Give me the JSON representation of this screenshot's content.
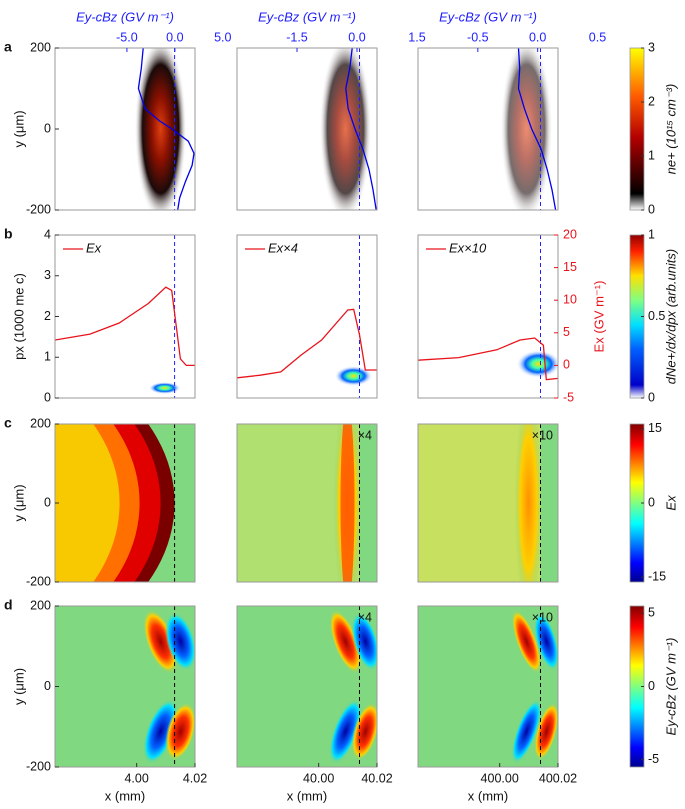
{
  "chart_data": [
    {
      "type": "density",
      "panel_label": "a",
      "ylabel": "y (μm)",
      "ylim": [
        -200,
        200
      ],
      "yticks": [
        200,
        0,
        -200
      ],
      "xlim": [
        3.972,
        4.02
      ],
      "marker_x": 4.013,
      "x2label": "Ey-cBz (GV m⁻¹)",
      "x2lim": [
        -12.5,
        2.1
      ],
      "x2ticks": [
        {
          "value": -5,
          "label": "-5.0"
        },
        {
          "value": 0,
          "label": "0.0"
        },
        {
          "value": 5,
          "label": "5.0"
        }
      ],
      "series": [
        {
          "color": "#0000ee",
          "y": [
            200,
            150,
            100,
            50,
            20,
            0,
            -30,
            -60,
            -90,
            -130,
            -170,
            -200
          ],
          "values": [
            -3.3,
            -3.5,
            -3.8,
            -3.1,
            -1.6,
            -0.3,
            1.4,
            2.0,
            1.8,
            1.1,
            0.5,
            0.3
          ]
        }
      ]
    },
    {
      "type": "density",
      "ylim": [
        -200,
        200
      ],
      "xlim": [
        39.972,
        40.02
      ],
      "marker_x": 40.014,
      "x2label": "Ey-cBz (GV m⁻¹)",
      "x2lim": [
        -3.0,
        0.5
      ],
      "x2ticks": [
        -1.5,
        {
          "value": 0,
          "label": "0.0"
        },
        1.5
      ],
      "series": [
        {
          "color": "#0000ee",
          "y": [
            200,
            150,
            100,
            50,
            0,
            -50,
            -100,
            -150,
            -200
          ],
          "values": [
            -0.12,
            -0.18,
            -0.28,
            -0.22,
            -0.05,
            0.15,
            0.3,
            0.4,
            0.48
          ]
        }
      ]
    },
    {
      "type": "density",
      "ylim": [
        -200,
        200
      ],
      "xlim": [
        399.972,
        400.02
      ],
      "marker_x": 400.014,
      "x2label": "Ey-cBz (GV m⁻¹)",
      "x2lim": [
        -1.0,
        0.17
      ],
      "x2ticks": [
        -0.5,
        {
          "value": 0,
          "label": "0.0"
        },
        0.5
      ],
      "series": [
        {
          "color": "#0000ee",
          "y": [
            200,
            150,
            100,
            50,
            0,
            -50,
            -100,
            -150,
            -200
          ],
          "values": [
            -0.16,
            -0.15,
            -0.16,
            -0.11,
            -0.05,
            0.03,
            0.08,
            0.12,
            0.15
          ]
        }
      ]
    },
    {
      "type": "phase",
      "panel_label": "b",
      "ylabel": "px (1000 me c)",
      "ylim": [
        0,
        4
      ],
      "yticks": [
        0,
        1,
        2,
        3,
        4
      ],
      "y2lim": [
        -5,
        20
      ],
      "xlim": [
        3.972,
        4.02
      ],
      "marker_x": 4.013,
      "series": [
        {
          "name": "Ex",
          "color": "#e8141c",
          "axis": "y2",
          "x": [
            3.972,
            3.984,
            3.994,
            4.004,
            4.01,
            4.012,
            4.013,
            4.015,
            4.017,
            4.02
          ],
          "values": [
            3.9,
            4.8,
            6.5,
            9.5,
            12,
            11.5,
            8,
            1,
            0,
            0
          ]
        }
      ]
    },
    {
      "type": "phase",
      "ylim": [
        0,
        4
      ],
      "y2lim": [
        -5,
        20
      ],
      "xlim": [
        39.972,
        40.02
      ],
      "marker_x": 40.014,
      "series": [
        {
          "name": "Ex×4",
          "color": "#e8141c",
          "axis": "y2",
          "x": [
            39.972,
            39.98,
            39.987,
            39.994,
            40.001,
            40.01,
            40.012,
            40.014,
            40.016,
            40.02
          ],
          "values": [
            -1.9,
            -1.5,
            -1,
            1.6,
            3.9,
            8.5,
            8.6,
            4.7,
            -0.7,
            -0.7
          ]
        }
      ]
    },
    {
      "type": "phase",
      "ylim": [
        0,
        4
      ],
      "y2lim": [
        -5,
        20
      ],
      "y2ticks": [
        -5,
        0,
        5,
        10,
        15,
        20
      ],
      "y2label": "Ex (GV m⁻¹)",
      "xlim": [
        399.972,
        400.02
      ],
      "marker_x": 400.014,
      "series": [
        {
          "name": "Ex×10",
          "color": "#e8141c",
          "axis": "y2",
          "x": [
            399.972,
            399.986,
            399.999,
            400.007,
            400.012,
            400.015,
            400.016,
            400.02
          ],
          "values": [
            0.8,
            1.2,
            2.4,
            3.9,
            4.2,
            3.1,
            -2.2,
            -2
          ]
        }
      ]
    },
    {
      "type": "field-ex",
      "panel_label": "c",
      "ylabel": "y (μm)",
      "ylim": [
        -200,
        200
      ],
      "yticks": [
        200,
        0,
        -200
      ],
      "xlim": [
        3.972,
        4.02
      ],
      "marker_x": 4.013
    },
    {
      "type": "field-ex",
      "annotation": "×4",
      "ylim": [
        -200,
        200
      ],
      "xlim": [
        39.972,
        40.02
      ],
      "marker_x": 40.014
    },
    {
      "type": "field-ex",
      "annotation": "×10",
      "ylim": [
        -200,
        200
      ],
      "xlim": [
        399.972,
        400.02
      ],
      "marker_x": 400.014
    },
    {
      "type": "field-ey",
      "panel_label": "d",
      "ylabel": "y (μm)",
      "ylim": [
        -200,
        200
      ],
      "yticks": [
        200,
        0,
        -200
      ],
      "xlim": [
        3.972,
        4.02
      ],
      "marker_x": 4.013,
      "xlabel": "x (mm)",
      "xticks": [
        {
          "value": 4,
          "label": "4.00"
        },
        4.02
      ]
    },
    {
      "type": "field-ey",
      "annotation": "×4",
      "ylim": [
        -200,
        200
      ],
      "xlim": [
        39.972,
        40.02
      ],
      "marker_x": 40.014,
      "xlabel": "x (mm)",
      "xticks": [
        {
          "value": 40,
          "label": "40.00"
        },
        40.02
      ]
    },
    {
      "type": "field-ey",
      "annotation": "×10",
      "ylim": [
        -200,
        200
      ],
      "xlim": [
        399.972,
        400.02
      ],
      "marker_x": 400.014,
      "xlabel": "x (mm)",
      "xticks": [
        {
          "value": 400,
          "label": "400.00"
        },
        400.02
      ]
    }
  ],
  "colorbars": [
    {
      "label": "ne+ (10¹⁵ cm⁻³)",
      "lim": [
        0,
        3
      ],
      "ticks": [
        0,
        1,
        2,
        3
      ],
      "colormap": "hot"
    },
    {
      "label": "dNe+/dx/dpx (arb.units)",
      "lim": [
        0,
        1
      ],
      "ticks": [
        0,
        0.5,
        1
      ],
      "colormap": "wjet"
    },
    {
      "label": "Ex",
      "lim": [
        -16,
        16
      ],
      "ticks": [
        -15,
        0,
        15
      ],
      "colormap": "jet"
    },
    {
      "label": "Ey-cBz (GV m⁻¹)",
      "lim": [
        -5.5,
        5.5
      ],
      "ticks": [
        -5,
        0,
        5
      ],
      "colormap": "jet"
    }
  ]
}
